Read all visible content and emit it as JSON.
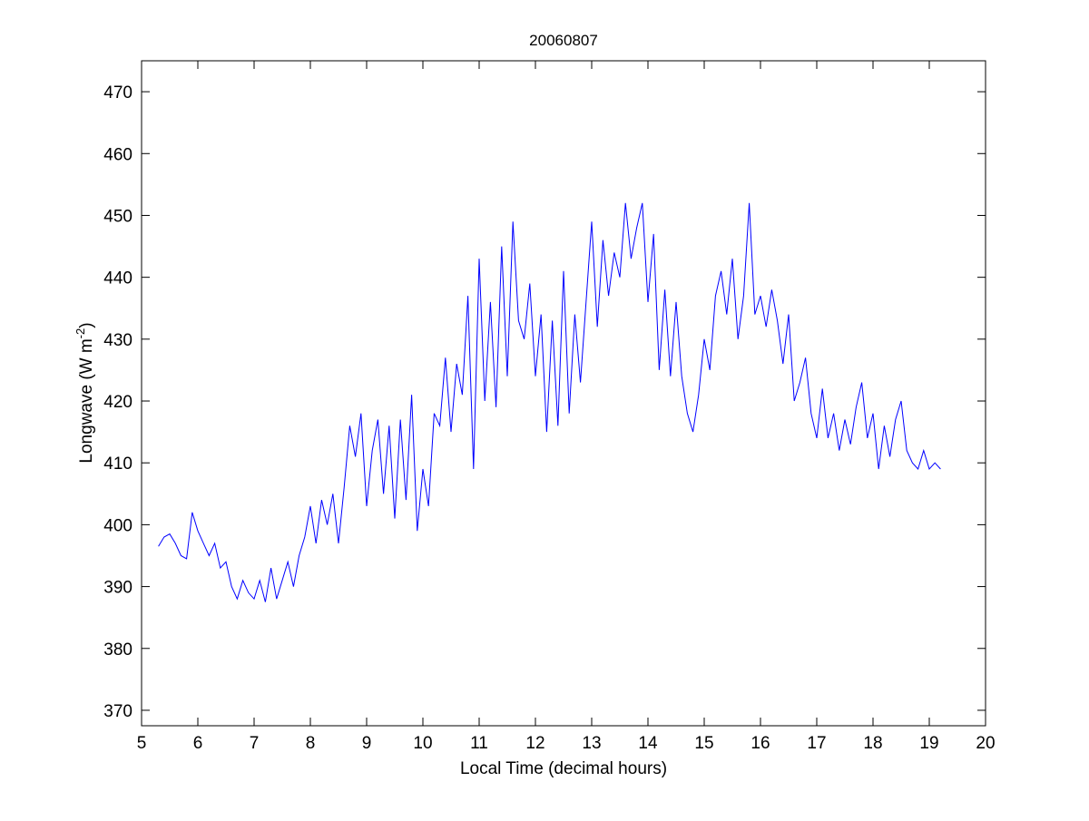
{
  "chart_data": {
    "type": "line",
    "title": "20060807",
    "xlabel": "Local Time (decimal hours)",
    "ylabel": "Longwave (W m",
    "ylabel_sup": "-2",
    "ylabel_close": ")",
    "xlim": [
      5,
      20
    ],
    "ylim": [
      367.5,
      475
    ],
    "xticks": [
      5,
      6,
      7,
      8,
      9,
      10,
      11,
      12,
      13,
      14,
      15,
      16,
      17,
      18,
      19,
      20
    ],
    "yticks": [
      370,
      380,
      390,
      400,
      410,
      420,
      430,
      440,
      450,
      460,
      470
    ],
    "grid": false,
    "line_color": "#0000ff",
    "series": [
      {
        "name": "Longwave",
        "x_start": 5.3,
        "x_step": 0.1,
        "values": [
          396.5,
          398,
          398.5,
          397,
          395,
          394.5,
          402,
          399,
          397,
          395,
          397,
          393,
          394,
          390,
          388,
          391,
          389,
          388,
          391,
          387.5,
          393,
          388,
          391,
          394,
          390,
          395,
          398,
          403,
          397,
          404,
          400,
          405,
          397,
          406,
          416,
          411,
          418,
          403,
          412,
          417,
          405,
          416,
          401,
          417,
          404,
          421,
          399,
          409,
          403,
          418,
          416,
          427,
          415,
          426,
          421,
          437,
          409,
          443,
          420,
          436,
          419,
          445,
          424,
          449,
          433,
          430,
          439,
          424,
          434,
          415,
          433,
          416,
          441,
          418,
          434,
          423,
          436,
          449,
          432,
          446,
          437,
          444,
          440,
          452,
          443,
          448,
          452,
          436,
          447,
          425,
          438,
          424,
          436,
          424,
          418,
          415,
          421,
          430,
          425,
          437,
          441,
          434,
          443,
          430,
          437,
          452,
          434,
          437,
          432,
          438,
          433,
          426,
          434,
          420,
          423,
          427,
          418,
          414,
          422,
          414,
          418,
          412,
          417,
          413,
          419,
          423,
          414,
          418,
          409,
          416,
          411,
          417,
          420,
          412,
          410,
          409,
          412,
          409,
          410,
          409
        ]
      }
    ]
  }
}
